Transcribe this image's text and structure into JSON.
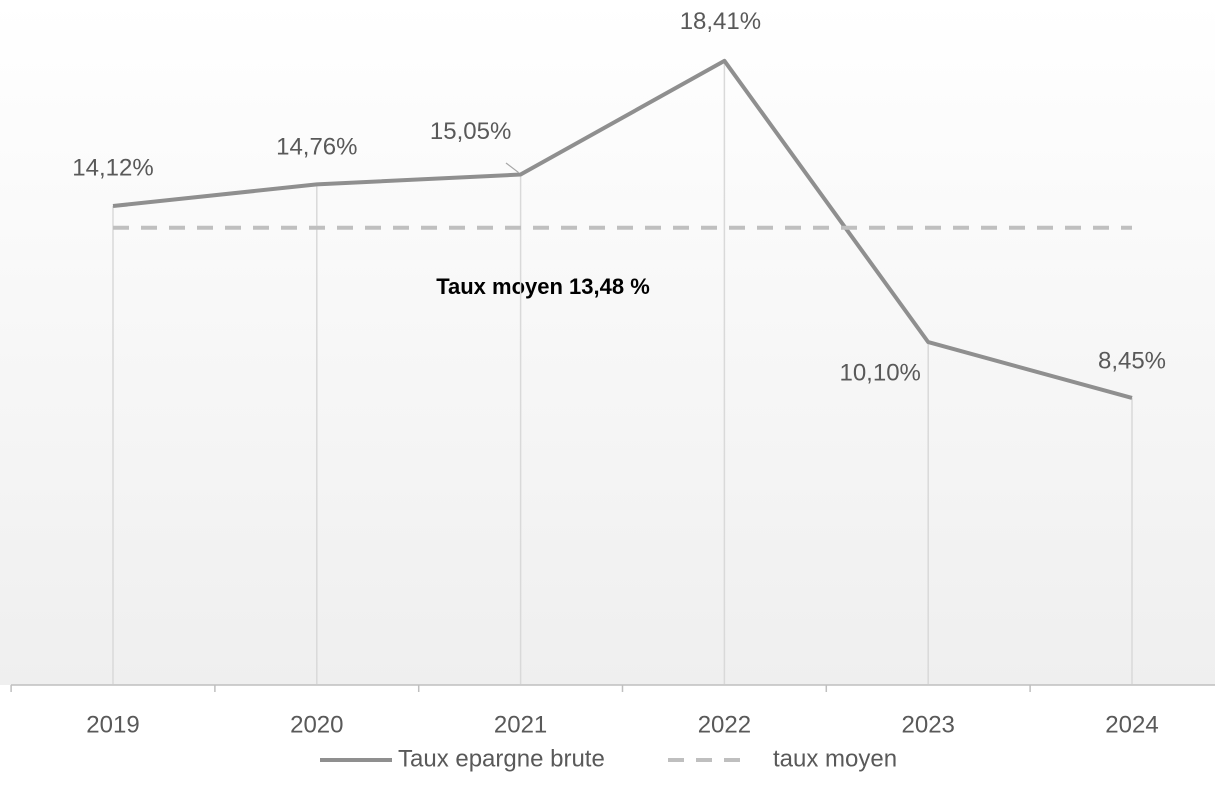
{
  "chart_data": {
    "type": "line",
    "categories": [
      "2019",
      "2020",
      "2021",
      "2022",
      "2023",
      "2024"
    ],
    "series": [
      {
        "name": "Taux epargne brute",
        "color": "#8f8f8f",
        "values": [
          14.12,
          14.76,
          15.05,
          18.41,
          10.1,
          8.45
        ],
        "value_labels": [
          "14,12%",
          "14,76%",
          "15,05%",
          "18,41%",
          "10,10%",
          "8,45%"
        ]
      },
      {
        "name": "taux moyen",
        "color": "#bfbfbf",
        "dashed": true,
        "values": [
          13.48,
          13.48,
          13.48,
          13.48,
          13.48,
          13.48
        ]
      }
    ],
    "annotation": "Taux moyen 13,48 %",
    "ylim": [
      0,
      20
    ]
  }
}
